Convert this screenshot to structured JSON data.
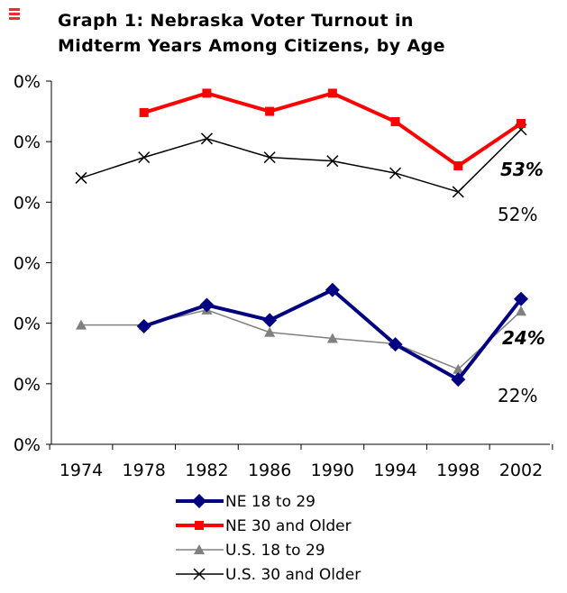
{
  "title_line1": "Graph 1: Nebraska Voter Turnout in",
  "title_line2": "Midterm Years Among Citizens, by Age",
  "chart_data": {
    "type": "line",
    "title": "Graph 1: Nebraska Voter Turnout in Midterm Years Among Citizens, by Age",
    "xlabel": "",
    "ylabel": "",
    "x_ticks": [
      "1974",
      "1978",
      "1982",
      "1986",
      "1990",
      "1994",
      "1998",
      "2002"
    ],
    "y_ticks_visible": [
      "0%",
      "0%",
      "0%",
      "0%",
      "0%",
      "0%",
      "0%"
    ],
    "ylim": [
      0,
      0.6
    ],
    "y_tick_values": [
      0,
      0.1,
      0.2,
      0.3,
      0.4,
      0.5,
      0.6
    ],
    "grid": false,
    "legend_position": "bottom",
    "series": [
      {
        "name": "NE 18 to 29",
        "color": "#000080",
        "marker": "diamond",
        "x": [
          1978,
          1982,
          1986,
          1990,
          1994,
          1998,
          2002
        ],
        "values": [
          0.195,
          0.23,
          0.205,
          0.255,
          0.165,
          0.107,
          0.24
        ]
      },
      {
        "name": "NE 30 and Older",
        "color": "#ff0000",
        "marker": "square",
        "x": [
          1978,
          1982,
          1986,
          1990,
          1994,
          1998,
          2002
        ],
        "values": [
          0.548,
          0.58,
          0.55,
          0.58,
          0.533,
          0.46,
          0.53
        ]
      },
      {
        "name": "U.S. 18 to 29",
        "color": "#808080",
        "marker": "triangle",
        "x": [
          1974,
          1978,
          1982,
          1986,
          1990,
          1994,
          1998,
          2002
        ],
        "values": [
          0.197,
          0.197,
          0.222,
          0.185,
          0.175,
          0.166,
          0.124,
          0.22
        ]
      },
      {
        "name": "U.S. 30 and Older",
        "color": "#000000",
        "marker": "x",
        "x": [
          1974,
          1978,
          1982,
          1986,
          1990,
          1994,
          1998,
          2002
        ],
        "values": [
          0.44,
          0.474,
          0.505,
          0.474,
          0.468,
          0.448,
          0.417,
          0.52
        ]
      }
    ],
    "annotations": [
      {
        "text": "53%",
        "style": "bold-italic",
        "series": "NE 30 and Older"
      },
      {
        "text": "52%",
        "style": "normal",
        "series": "U.S. 30 and Older"
      },
      {
        "text": "24%",
        "style": "bold-italic",
        "series": "NE 18 to 29"
      },
      {
        "text": "22%",
        "style": "normal",
        "series": "U.S. 18 to 29"
      }
    ]
  },
  "icon": {
    "name": "menu-icon",
    "color": "#e53030"
  }
}
